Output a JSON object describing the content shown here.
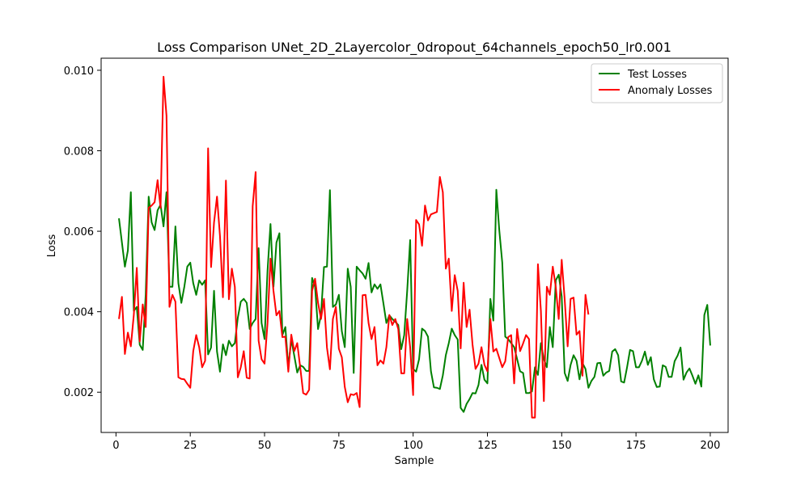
{
  "chart_data": {
    "type": "line",
    "title": "Loss Comparison UNet_2D_2Layercolor_0dropout_64channels_epoch50_lr0.001",
    "xlabel": "Sample",
    "ylabel": "Loss",
    "xlim": [
      -5,
      206
    ],
    "ylim": [
      0.001,
      0.0103
    ],
    "xticks": [
      0,
      25,
      50,
      75,
      100,
      125,
      150,
      175,
      200
    ],
    "xtick_labels": [
      "0",
      "25",
      "50",
      "75",
      "100",
      "125",
      "150",
      "175",
      "200"
    ],
    "yticks": [
      0.002,
      0.004,
      0.006,
      0.008,
      0.01
    ],
    "ytick_labels": [
      "0.002",
      "0.004",
      "0.006",
      "0.008",
      "0.010"
    ],
    "grid": false,
    "legend_position": "top-right",
    "series": [
      {
        "name": "Test Losses",
        "color": "#008000",
        "x_start": 1,
        "values": [
          0.00632,
          0.00572,
          0.00512,
          0.00552,
          0.00697,
          0.00402,
          0.00412,
          0.00318,
          0.00305,
          0.00442,
          0.00686,
          0.00622,
          0.00603,
          0.00652,
          0.00666,
          0.00612,
          0.00697,
          0.00462,
          0.00462,
          0.00612,
          0.00471,
          0.00422,
          0.00462,
          0.00512,
          0.00522,
          0.00471,
          0.00442,
          0.00478,
          0.00467,
          0.00478,
          0.00294,
          0.00311,
          0.00452,
          0.00301,
          0.00251,
          0.00319,
          0.00292,
          0.00328,
          0.00314,
          0.00322,
          0.00385,
          0.00425,
          0.00432,
          0.00422,
          0.00357,
          0.00372,
          0.00382,
          0.00558,
          0.00372,
          0.00332,
          0.00502,
          0.00618,
          0.00462,
          0.00572,
          0.00595,
          0.00342,
          0.00362,
          0.00262,
          0.00331,
          0.00291,
          0.00249,
          0.00267,
          0.00263,
          0.00253,
          0.00253,
          0.00484,
          0.00462,
          0.00357,
          0.00392,
          0.00511,
          0.00512,
          0.00702,
          0.00412,
          0.00418,
          0.00442,
          0.00352,
          0.00312,
          0.00507,
          0.00462,
          0.00248,
          0.00512,
          0.00503,
          0.00495,
          0.00482,
          0.00521,
          0.00448,
          0.00468,
          0.00457,
          0.00468,
          0.00421,
          0.00372,
          0.00391,
          0.00382,
          0.00375,
          0.00367,
          0.00307,
          0.00342,
          0.00452,
          0.00578,
          0.00258,
          0.00251,
          0.00282,
          0.00358,
          0.00352,
          0.00338,
          0.00252,
          0.00212,
          0.00211,
          0.00208,
          0.00242,
          0.00292,
          0.00322,
          0.00358,
          0.00342,
          0.00331,
          0.00161,
          0.00151,
          0.00171,
          0.00183,
          0.00198,
          0.00197,
          0.00218,
          0.00268,
          0.00231,
          0.00222,
          0.00432,
          0.00378,
          0.00703,
          0.00602,
          0.00522,
          0.00338,
          0.00332,
          0.00322,
          0.00312,
          0.00282,
          0.00252,
          0.00248,
          0.00198,
          0.00198,
          0.00202,
          0.00262,
          0.00243,
          0.00322,
          0.00282,
          0.00262,
          0.00362,
          0.00312,
          0.00478,
          0.00492,
          0.00438,
          0.00248,
          0.00228,
          0.00268,
          0.00292,
          0.00278,
          0.00232,
          0.00272,
          0.00258,
          0.00211,
          0.00228,
          0.00238,
          0.00272,
          0.00273,
          0.00241,
          0.00249,
          0.00253,
          0.00301,
          0.00307,
          0.00292,
          0.00227,
          0.00224,
          0.00262,
          0.00305,
          0.00302,
          0.00262,
          0.00262,
          0.00278,
          0.00301,
          0.00268,
          0.00287,
          0.00232,
          0.00213,
          0.00214,
          0.00267,
          0.00263,
          0.00238,
          0.00238,
          0.00277,
          0.00291,
          0.00311,
          0.00231,
          0.00249,
          0.00259,
          0.00241,
          0.00221,
          0.00242,
          0.00214,
          0.00392,
          0.00417,
          0.00316
        ]
      },
      {
        "name": "Anomaly Losses",
        "color": "#ff0000",
        "x_start": 1,
        "values": [
          0.00382,
          0.00437,
          0.00295,
          0.00348,
          0.00314,
          0.00392,
          0.00509,
          0.00326,
          0.00418,
          0.00362,
          0.00658,
          0.00664,
          0.00672,
          0.00727,
          0.00658,
          0.00984,
          0.00887,
          0.00412,
          0.00442,
          0.00425,
          0.00237,
          0.00233,
          0.00232,
          0.00221,
          0.00211,
          0.00302,
          0.00342,
          0.00312,
          0.00262,
          0.00278,
          0.00806,
          0.00511,
          0.00622,
          0.00686,
          0.00588,
          0.00436,
          0.00726,
          0.00431,
          0.00507,
          0.00462,
          0.00237,
          0.00262,
          0.00302,
          0.00236,
          0.00234,
          0.00662,
          0.00747,
          0.00328,
          0.00282,
          0.00271,
          0.00372,
          0.00532,
          0.00452,
          0.00391,
          0.00402,
          0.00337,
          0.00338,
          0.00251,
          0.00343,
          0.00302,
          0.00322,
          0.00262,
          0.00198,
          0.00194,
          0.00206,
          0.00452,
          0.00482,
          0.00422,
          0.00382,
          0.00432,
          0.00311,
          0.00257,
          0.00382,
          0.00412,
          0.00308,
          0.00287,
          0.00213,
          0.00175,
          0.00195,
          0.00193,
          0.00198,
          0.00163,
          0.00441,
          0.00442,
          0.00372,
          0.00332,
          0.00362,
          0.00267,
          0.00279,
          0.00271,
          0.00312,
          0.00392,
          0.00367,
          0.00382,
          0.00357,
          0.00247,
          0.00247,
          0.00382,
          0.00312,
          0.00193,
          0.00628,
          0.00617,
          0.00564,
          0.00664,
          0.00627,
          0.00642,
          0.00645,
          0.00648,
          0.00735,
          0.00697,
          0.00507,
          0.00532,
          0.00402,
          0.00491,
          0.00452,
          0.00309,
          0.00472,
          0.00362,
          0.00405,
          0.00318,
          0.00258,
          0.00271,
          0.00312,
          0.00268,
          0.00252,
          0.00382,
          0.00301,
          0.00308,
          0.00285,
          0.00262,
          0.00277,
          0.00337,
          0.00342,
          0.00222,
          0.00357,
          0.00302,
          0.00321,
          0.00342,
          0.00332,
          0.00137,
          0.00137,
          0.00518,
          0.00402,
          0.00178,
          0.00462,
          0.00442,
          0.00512,
          0.00462,
          0.00382,
          0.00529,
          0.00431,
          0.00314,
          0.00432,
          0.00435,
          0.00343,
          0.00352,
          0.00241,
          0.00442,
          0.00393
        ]
      }
    ]
  }
}
